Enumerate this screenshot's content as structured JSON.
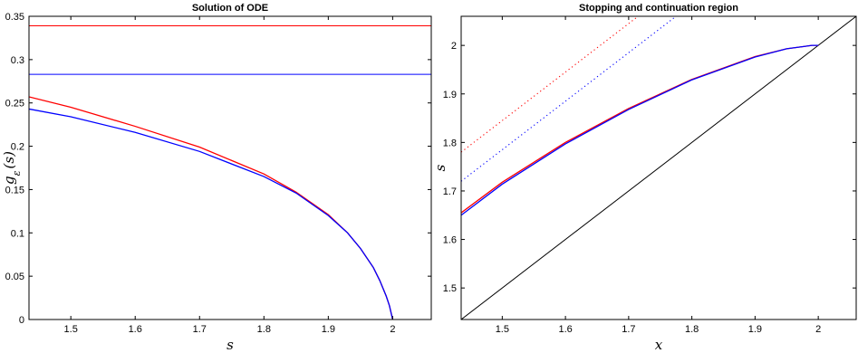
{
  "chart_data": [
    {
      "type": "line",
      "title": "Solution of ODE",
      "xlabel": "s",
      "ylabel": "g_ε(s)",
      "ylabel_main": "g",
      "ylabel_sub": "ε",
      "ylabel_rest": "(s)",
      "xlim": [
        1.435,
        2.06
      ],
      "ylim": [
        0,
        0.35
      ],
      "xticks": [
        1.5,
        1.6,
        1.7,
        1.8,
        1.9,
        2
      ],
      "yticks": [
        0,
        0.05,
        0.1,
        0.15,
        0.2,
        0.25,
        0.3,
        0.35
      ],
      "grid": false,
      "series": [
        {
          "color": "#ff0000",
          "style": "solid",
          "x": [
            1.435,
            1.5,
            1.6,
            1.7,
            1.8,
            1.85,
            1.9,
            1.93,
            1.95,
            1.97,
            1.98,
            1.99,
            1.995,
            2.0
          ],
          "y": [
            0.257,
            0.245,
            0.223,
            0.199,
            0.168,
            0.147,
            0.121,
            0.1,
            0.082,
            0.06,
            0.045,
            0.027,
            0.016,
            0.0
          ]
        },
        {
          "color": "#0000ff",
          "style": "solid",
          "x": [
            1.435,
            1.5,
            1.6,
            1.7,
            1.8,
            1.85,
            1.9,
            1.93,
            1.95,
            1.97,
            1.98,
            1.99,
            1.995,
            2.0
          ],
          "y": [
            0.243,
            0.234,
            0.216,
            0.194,
            0.165,
            0.146,
            0.12,
            0.1,
            0.082,
            0.06,
            0.045,
            0.027,
            0.016,
            0.0
          ]
        },
        {
          "color": "#ff0000",
          "style": "solid",
          "x": [
            1.435,
            2.06
          ],
          "y": [
            0.339,
            0.339
          ]
        },
        {
          "color": "#0000ff",
          "style": "solid",
          "x": [
            1.435,
            2.06
          ],
          "y": [
            0.283,
            0.283
          ]
        }
      ]
    },
    {
      "type": "line",
      "title": "Stopping and continuation region",
      "xlabel": "x",
      "ylabel": "s",
      "xlim": [
        1.435,
        2.06
      ],
      "ylim": [
        1.435,
        2.06
      ],
      "xticks": [
        1.5,
        1.6,
        1.7,
        1.8,
        1.9,
        2
      ],
      "yticks": [
        1.5,
        1.6,
        1.7,
        1.8,
        1.9,
        2
      ],
      "grid": false,
      "series": [
        {
          "color": "#000000",
          "style": "solid",
          "x": [
            1.435,
            2.06
          ],
          "y": [
            1.435,
            2.06
          ]
        },
        {
          "color": "#ff0000",
          "style": "solid",
          "x": [
            1.435,
            1.5,
            1.6,
            1.7,
            1.8,
            1.9,
            1.95,
            1.99,
            2.0
          ],
          "y": [
            1.655,
            1.718,
            1.8,
            1.87,
            1.93,
            1.977,
            1.993,
            2.0,
            2.0
          ]
        },
        {
          "color": "#0000ff",
          "style": "solid",
          "x": [
            1.435,
            1.5,
            1.6,
            1.7,
            1.8,
            1.9,
            1.95,
            1.99,
            2.0
          ],
          "y": [
            1.65,
            1.714,
            1.797,
            1.868,
            1.929,
            1.976,
            1.993,
            2.0,
            2.0
          ]
        },
        {
          "color": "#ff0000",
          "style": "dotted",
          "x": [
            1.435,
            1.715
          ],
          "y": [
            1.78,
            2.06
          ]
        },
        {
          "color": "#0000ff",
          "style": "dotted",
          "x": [
            1.435,
            1.775
          ],
          "y": [
            1.72,
            2.06
          ]
        }
      ]
    }
  ]
}
